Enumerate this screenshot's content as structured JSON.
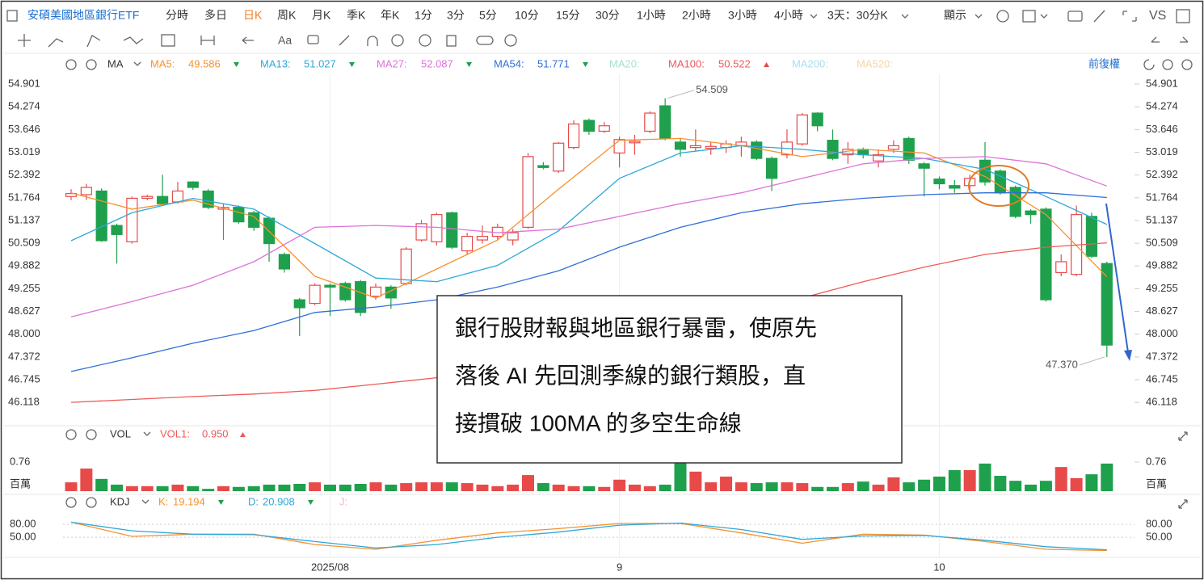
{
  "toolbar": {
    "title": "安碩美國地區銀行ETF",
    "periods": [
      "分時",
      "多日",
      "日K",
      "周K",
      "月K",
      "季K",
      "年K",
      "1分",
      "3分",
      "5分",
      "10分",
      "15分",
      "30分",
      "1小時",
      "2小時",
      "3小時",
      "4小時",
      "3天：30分K"
    ],
    "active_period": 2,
    "display": "顯示",
    "vs": "VS",
    "text_tool": "Aa"
  },
  "chart_data": [
    {
      "type": "candlestick",
      "title": "MA",
      "adjustment": "前復權",
      "categories": [
        null,
        null,
        null,
        null,
        null,
        null,
        null,
        null,
        null,
        null,
        null,
        null,
        null,
        null,
        null,
        null,
        null,
        "2025/08",
        null,
        null,
        null,
        null,
        null,
        null,
        null,
        null,
        null,
        null,
        null,
        null,
        null,
        null,
        null,
        null,
        null,
        null,
        "9",
        null,
        null,
        null,
        null,
        null,
        null,
        null,
        null,
        null,
        null,
        null,
        null,
        null,
        null,
        null,
        null,
        null,
        null,
        null,
        null,
        "10",
        null,
        null,
        null,
        null,
        null,
        null,
        null,
        null,
        null,
        null,
        null
      ],
      "open": [
        51.8,
        51.85,
        51.95,
        51.0,
        50.55,
        51.75,
        51.8,
        51.65,
        52.2,
        51.95,
        51.45,
        51.5,
        51.35,
        51.2,
        50.2,
        48.95,
        48.85,
        49.35,
        49.4,
        49.45,
        49.05,
        49.3,
        49.4,
        50.6,
        50.55,
        51.35,
        50.3,
        50.6,
        50.7,
        50.6,
        50.95,
        52.65,
        52.5,
        53.15,
        53.9,
        53.6,
        53.0,
        53.28,
        53.6,
        54.3,
        53.3,
        53.15,
        53.13,
        53.15,
        53.2,
        53.3,
        52.85,
        52.95,
        53.25,
        54.1,
        53.35,
        52.95,
        53.1,
        52.78,
        53.1,
        53.4,
        52.7,
        52.28,
        52.1,
        52.1,
        52.8,
        52.5,
        52.05,
        51.4,
        51.45,
        49.7,
        49.65,
        51.25,
        49.95
      ],
      "high": [
        52.0,
        52.15,
        52.02,
        51.05,
        51.8,
        51.85,
        52.4,
        52.2,
        52.22,
        52.0,
        51.6,
        51.55,
        51.4,
        51.25,
        50.25,
        49.0,
        49.4,
        49.4,
        49.45,
        49.5,
        49.4,
        49.35,
        50.4,
        51.15,
        51.35,
        51.38,
        50.8,
        51.0,
        51.05,
        50.9,
        53.0,
        52.75,
        53.3,
        53.9,
        53.95,
        53.85,
        53.45,
        53.5,
        54.15,
        54.509,
        53.4,
        53.65,
        53.3,
        53.35,
        53.45,
        53.35,
        52.9,
        53.65,
        54.1,
        54.12,
        53.65,
        53.3,
        53.15,
        53.1,
        53.35,
        53.45,
        52.75,
        52.35,
        52.25,
        52.4,
        53.3,
        52.55,
        52.1,
        51.45,
        51.5,
        50.2,
        51.55,
        51.35,
        50.0
      ],
      "low": [
        51.7,
        51.7,
        50.55,
        49.95,
        50.5,
        51.7,
        51.55,
        51.6,
        51.98,
        51.45,
        50.6,
        51.05,
        50.85,
        50.0,
        49.7,
        47.95,
        48.8,
        48.5,
        48.9,
        48.5,
        48.95,
        48.7,
        49.35,
        50.55,
        50.45,
        50.35,
        50.2,
        50.5,
        50.6,
        50.45,
        50.9,
        52.55,
        52.45,
        53.1,
        53.5,
        53.55,
        52.6,
        52.95,
        53.55,
        53.35,
        52.9,
        53.05,
        52.95,
        53.0,
        52.9,
        52.8,
        51.95,
        52.85,
        53.2,
        53.6,
        52.8,
        52.7,
        52.85,
        52.6,
        53.0,
        52.7,
        51.8,
        52.0,
        51.9,
        51.95,
        52.1,
        51.85,
        51.2,
        51.05,
        48.9,
        49.6,
        49.6,
        50.1,
        47.37
      ],
      "close": [
        51.88,
        52.05,
        50.58,
        50.75,
        51.75,
        51.8,
        51.6,
        51.95,
        52.05,
        51.5,
        51.5,
        51.1,
        50.95,
        50.5,
        49.8,
        48.73,
        49.35,
        49.3,
        48.95,
        48.6,
        49.3,
        49.0,
        50.35,
        51.05,
        51.3,
        50.4,
        50.7,
        50.7,
        50.95,
        50.8,
        52.9,
        52.6,
        53.27,
        53.8,
        53.6,
        53.75,
        53.37,
        53.32,
        54.1,
        53.4,
        53.1,
        53.2,
        53.18,
        53.25,
        53.3,
        52.85,
        52.3,
        53.3,
        54.05,
        53.75,
        52.85,
        53.1,
        52.95,
        52.95,
        53.2,
        52.8,
        52.58,
        52.15,
        52.03,
        52.3,
        52.2,
        51.9,
        51.25,
        51.3,
        48.95,
        50.0,
        51.3,
        50.15,
        47.7
      ],
      "high_label": "54.509",
      "low_label": "47.370",
      "up_color": "#e84a4a",
      "down_color": "#1ea04c",
      "ylim": [
        45.52,
        55.17
      ],
      "yticks": [
        54.901,
        54.274,
        53.646,
        53.019,
        52.392,
        51.764,
        51.137,
        50.509,
        49.882,
        49.255,
        48.627,
        {
          "value": 48.0,
          "label": "48.000"
        },
        47.372,
        46.745,
        46.118
      ],
      "x": [
        0,
        4,
        8,
        12,
        16,
        20,
        24,
        28,
        32,
        36,
        40,
        44,
        48,
        52,
        56,
        60,
        64,
        68
      ],
      "series": [
        {
          "name": "MA5:",
          "color": "#f5922f",
          "values": [
            51.9,
            51.45,
            51.7,
            51.25,
            49.6,
            49.0,
            49.8,
            50.6,
            52.0,
            53.35,
            53.4,
            53.2,
            52.9,
            53.1,
            53.0,
            52.35,
            51.3,
            49.586
          ]
        },
        {
          "name": "MA13:",
          "color": "#2fa8d8",
          "values": [
            50.58,
            51.35,
            51.75,
            51.45,
            50.5,
            49.55,
            49.45,
            49.9,
            50.85,
            52.3,
            53.0,
            53.2,
            53.1,
            52.95,
            52.85,
            52.55,
            51.8,
            51.027
          ]
        },
        {
          "name": "MA27:",
          "color": "#de72d8",
          "values": [
            48.48,
            48.9,
            49.35,
            50.0,
            50.95,
            51.0,
            50.95,
            50.8,
            50.9,
            51.25,
            51.6,
            51.9,
            52.3,
            52.7,
            52.85,
            52.9,
            52.7,
            52.087
          ]
        },
        {
          "name": "MA54:",
          "color": "#2f6fd8",
          "values": [
            46.97,
            47.35,
            47.75,
            48.1,
            48.6,
            48.75,
            48.95,
            49.3,
            49.75,
            50.4,
            50.95,
            51.35,
            51.6,
            51.75,
            51.85,
            51.9,
            51.9,
            51.771
          ]
        },
        {
          "name": "MA20:",
          "color": "#a6e0cf"
        },
        {
          "name": "MA100:",
          "color": "#ef5a5a",
          "values": [
            46.12,
            46.2,
            46.28,
            46.35,
            46.45,
            46.62,
            46.8,
            47.0,
            47.3,
            47.7,
            48.1,
            48.55,
            49.0,
            49.45,
            49.85,
            50.2,
            50.4,
            50.522
          ]
        },
        {
          "name": "MA200:",
          "color": "#a8def0"
        },
        {
          "name": "MA520:",
          "color": "#f6d6a6"
        }
      ],
      "annotation": [
        "銀行股財報與地區銀行暴雷，使原先",
        "落後 AI 先回測季線的銀行類股，直",
        "接摜破 100MA 的多空生命線"
      ]
    },
    {
      "type": "bar",
      "title": "VOL",
      "legend": {
        "name": "VOL1:",
        "value": 0.95,
        "label": "0.950",
        "color": "#ef5a5a"
      },
      "values": [
        0.23,
        0.59,
        0.32,
        0.17,
        0.13,
        0.13,
        0.13,
        0.17,
        0.13,
        0.06,
        0.13,
        0.11,
        0.13,
        0.17,
        0.17,
        0.19,
        0.23,
        0.17,
        0.17,
        0.19,
        0.23,
        0.17,
        0.21,
        0.23,
        0.23,
        0.23,
        0.21,
        0.17,
        0.13,
        0.17,
        0.42,
        0.21,
        0.17,
        0.13,
        0.13,
        0.11,
        0.3,
        0.17,
        0.13,
        0.17,
        0.76,
        0.51,
        0.23,
        0.38,
        0.23,
        0.21,
        0.23,
        0.23,
        0.21,
        0.11,
        0.11,
        0.21,
        0.25,
        0.17,
        0.36,
        0.23,
        0.3,
        0.38,
        0.55,
        0.55,
        0.72,
        0.4,
        0.27,
        0.17,
        0.27,
        0.63,
        0.34,
        0.44,
        0.72
      ],
      "ylim": [
        0,
        1.0
      ],
      "yticks": [
        0.76
      ],
      "unit_label": "百萬"
    },
    {
      "type": "line",
      "title": "KDJ",
      "x": [
        0,
        4,
        8,
        12,
        16,
        20,
        24,
        28,
        32,
        36,
        40,
        44,
        48,
        52,
        56,
        60,
        64,
        68
      ],
      "series": [
        {
          "name": "K:",
          "color": "#f5922f",
          "values": [
            85,
            52,
            57,
            57,
            33,
            22,
            43,
            60,
            70,
            82,
            82,
            60,
            36,
            57,
            55,
            40,
            22,
            19.194
          ]
        },
        {
          "name": "D:",
          "color": "#2fa8d8",
          "values": [
            85,
            65,
            57,
            56,
            40,
            25,
            33,
            50,
            62,
            78,
            83,
            68,
            45,
            53,
            54,
            43,
            28,
            20.908
          ]
        },
        {
          "name": "J:",
          "color": "#f2b6d6"
        }
      ],
      "ylim": [
        7,
        97
      ],
      "yticks": [
        {
          "value": 80,
          "label": "80.00"
        },
        {
          "value": 50,
          "label": "50.00"
        }
      ]
    }
  ]
}
